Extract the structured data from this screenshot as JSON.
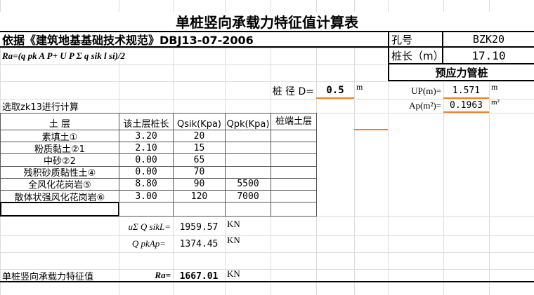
{
  "title": "单桩竖向承载力特征值计算表",
  "basis": "依据《建筑地基基础技术规范》DBJ13-07-2006",
  "formula": "Ra=(q pk A P+ U P Σ q sik l si)/2",
  "hole_label": "孔号",
  "hole_value": "BZK20",
  "length_label": "桩长（m）",
  "length_value": "17.10",
  "pile_type": "预应力管桩",
  "diameter_label": "桩 径 D=",
  "diameter_value": "0.5",
  "diameter_unit": "m",
  "up_label": "UP(m)=",
  "up_value": "1.571",
  "up_unit": "m",
  "ap_label": "Ap(m²)=",
  "ap_value": "0.1963",
  "ap_unit": "m²",
  "select_note": "选取zk13进行计算",
  "table": {
    "headers": [
      "土   层",
      "该土层桩长",
      "Qsik(Kpa)",
      "Qpk(Kpa)",
      "桩端土层"
    ],
    "rows": [
      [
        "素填土①",
        "3.20",
        "20",
        "",
        ""
      ],
      [
        "粉质黏土②1",
        "2.10",
        "15",
        "",
        ""
      ],
      [
        "中砂②2",
        "0.00",
        "65",
        "",
        ""
      ],
      [
        "残积砂质黏性土④",
        "0.00",
        "70",
        "",
        ""
      ],
      [
        "全风化花岗岩⑤",
        "8.80",
        "90",
        "5500",
        ""
      ],
      [
        "散体状强风化花岗岩⑥",
        "3.00",
        "120",
        "7000",
        ""
      ]
    ]
  },
  "results": {
    "side_label": "uΣ Q sikL=",
    "side_value": "1959.57",
    "side_unit": "KN",
    "tip_label": "Q pkAp=",
    "tip_value": "1374.45",
    "tip_unit": "KN",
    "ra_title": "单桩竖向承载力特征值",
    "ra_label": "Ra=",
    "ra_value": "1667.01",
    "ra_unit": "KN"
  },
  "colors": {
    "accent": "#f08020"
  }
}
